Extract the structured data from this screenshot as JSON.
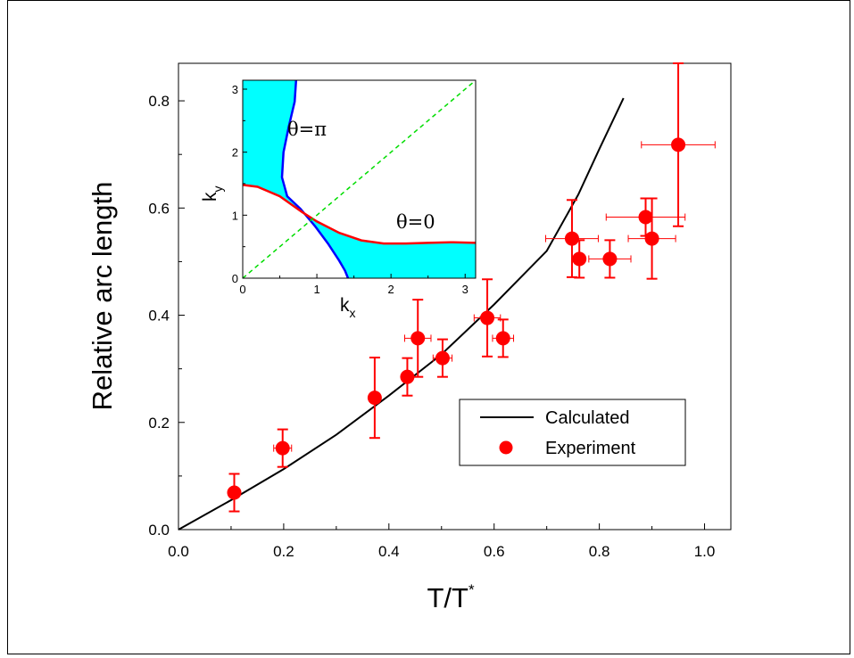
{
  "chart_data": [
    {
      "type": "scatter",
      "xlabel": "T/T*",
      "xlabel_main": "T/T",
      "xlabel_sup": "*",
      "ylabel": "Relative arc length",
      "xlim": [
        0.0,
        1.05
      ],
      "ylim": [
        0.0,
        0.87
      ],
      "xticks": [
        0.0,
        0.2,
        0.4,
        0.6,
        0.8,
        1.0
      ],
      "xtick_labels": [
        "0.0",
        "0.2",
        "0.4",
        "0.6",
        "0.8",
        "1.0"
      ],
      "yticks": [
        0.0,
        0.2,
        0.4,
        0.6,
        0.8
      ],
      "ytick_labels": [
        "0.0",
        "0.2",
        "0.4",
        "0.6",
        "0.8"
      ],
      "grid": false,
      "legend_position": "lower-right",
      "series": [
        {
          "name": "Calculated",
          "kind": "line",
          "color": "#000000",
          "x": [
            0.0,
            0.1,
            0.2,
            0.3,
            0.4,
            0.5,
            0.6,
            0.7,
            0.76,
            0.8,
            0.846
          ],
          "y": [
            0.0,
            0.055,
            0.113,
            0.177,
            0.25,
            0.327,
            0.42,
            0.52,
            0.625,
            0.71,
            0.805
          ]
        },
        {
          "name": "Experiment",
          "kind": "scatter",
          "color": "#ff0000",
          "x": [
            0.106,
            0.198,
            0.373,
            0.435,
            0.455,
            0.502,
            0.587,
            0.617,
            0.748,
            0.762,
            0.82,
            0.888,
            0.9,
            0.95
          ],
          "y": [
            0.069,
            0.152,
            0.246,
            0.285,
            0.357,
            0.32,
            0.395,
            0.357,
            0.543,
            0.505,
            0.505,
            0.583,
            0.543,
            0.718
          ],
          "xerr": [
            0.0,
            0.017,
            0.0,
            0.0,
            0.025,
            0.018,
            0.025,
            0.02,
            0.05,
            0.0,
            0.04,
            0.075,
            0.045,
            0.07
          ],
          "yerr": [
            0.035,
            0.035,
            0.075,
            0.035,
            0.072,
            0.035,
            0.072,
            0.035,
            0.072,
            0.035,
            0.035,
            0.035,
            0.075,
            0.152
          ]
        }
      ]
    },
    {
      "type": "area",
      "role": "inset",
      "xlabel": "kx",
      "xlabel_main": "k",
      "xlabel_sub": "x",
      "ylabel": "ky",
      "ylabel_main": "k",
      "ylabel_sub": "y",
      "xlim": [
        0,
        3.14159
      ],
      "ylim": [
        0,
        3.14159
      ],
      "xticks": [
        0,
        1,
        2,
        3
      ],
      "xtick_labels": [
        "0",
        "1",
        "2",
        "3"
      ],
      "yticks": [
        0,
        1,
        2,
        3
      ],
      "ytick_labels": [
        "0",
        "1",
        "2",
        "3"
      ],
      "annotations": [
        "θ=π",
        "θ=0"
      ],
      "fill_color": "#00ffff",
      "series": [
        {
          "color": "#0000ff",
          "x": [
            0.72,
            0.7,
            0.62,
            0.55,
            0.53,
            0.6,
            0.78,
            0.98,
            1.15,
            1.3,
            1.38,
            1.42
          ],
          "y": [
            3.14,
            2.8,
            2.4,
            2.0,
            1.6,
            1.3,
            1.1,
            0.82,
            0.55,
            0.28,
            0.12,
            0.0
          ]
        },
        {
          "color": "#ff0000",
          "x": [
            0.0,
            0.2,
            0.5,
            0.8,
            1.0,
            1.3,
            1.6,
            1.9,
            2.2,
            2.5,
            2.8,
            3.14
          ],
          "y": [
            1.48,
            1.45,
            1.3,
            1.05,
            0.9,
            0.72,
            0.6,
            0.55,
            0.55,
            0.56,
            0.57,
            0.56
          ]
        },
        {
          "color": "#00dd00",
          "dashed": true,
          "x": [
            0.0,
            3.14159
          ],
          "y": [
            0.0,
            3.14159
          ]
        }
      ]
    }
  ]
}
